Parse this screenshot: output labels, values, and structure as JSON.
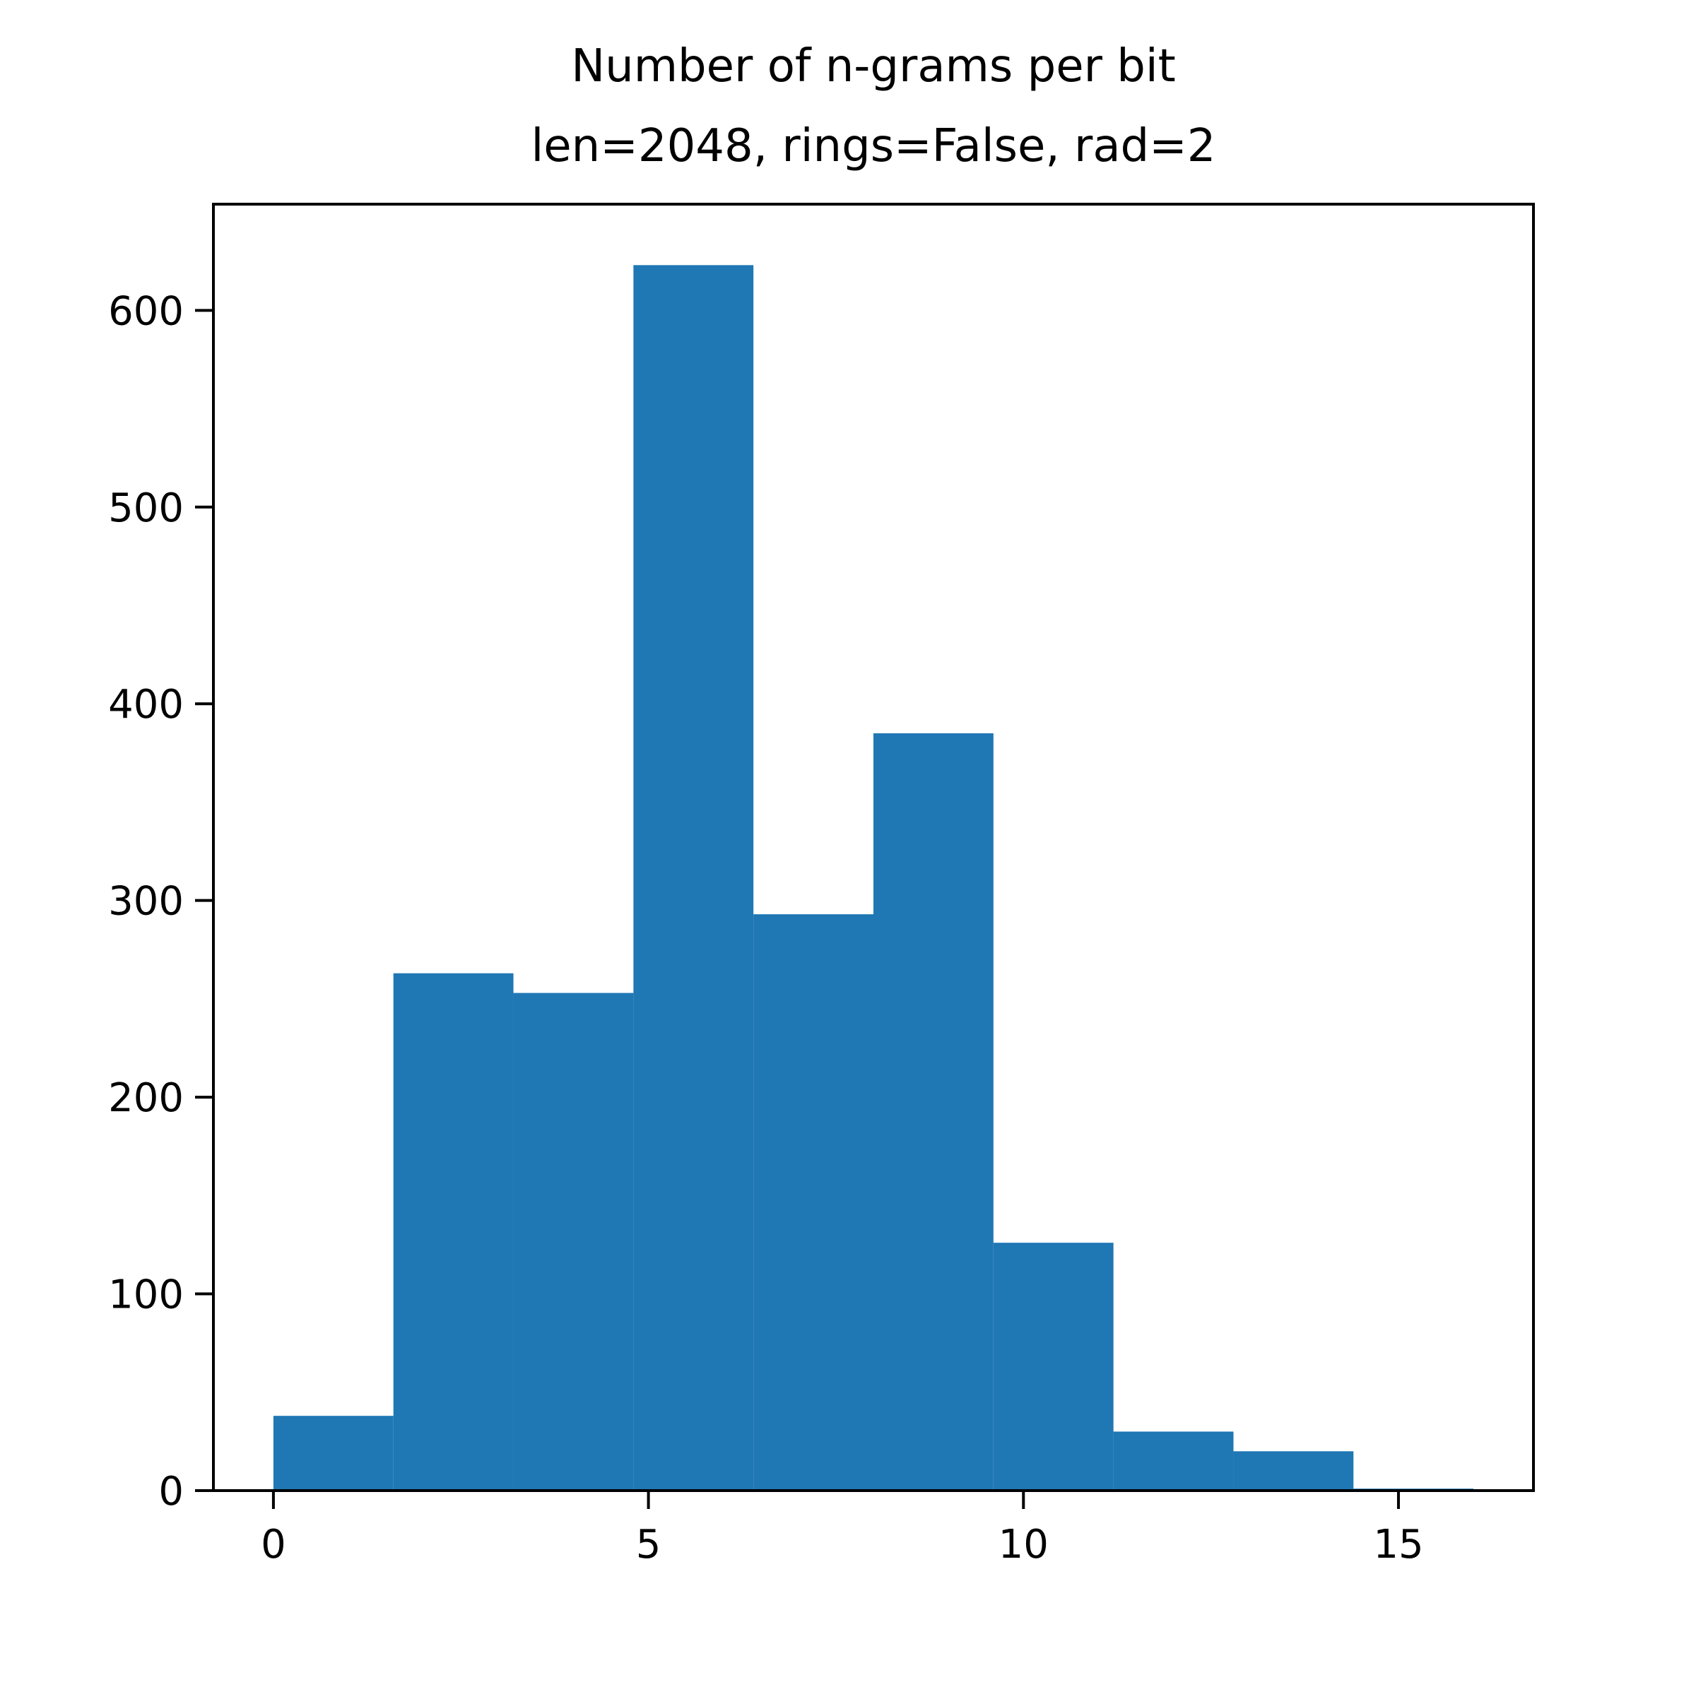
{
  "chart_data": {
    "type": "bar",
    "title_lines": [
      "Number of n-grams per bit",
      "len=2048, rings=False, rad=2"
    ],
    "xlabel": "",
    "ylabel": "",
    "bins": [
      {
        "x0": 0.0,
        "x1": 1.6,
        "count": 38
      },
      {
        "x0": 1.6,
        "x1": 3.2,
        "count": 263
      },
      {
        "x0": 3.2,
        "x1": 4.8,
        "count": 253
      },
      {
        "x0": 4.8,
        "x1": 6.4,
        "count": 623
      },
      {
        "x0": 6.4,
        "x1": 8.0,
        "count": 293
      },
      {
        "x0": 8.0,
        "x1": 9.6,
        "count": 385
      },
      {
        "x0": 9.6,
        "x1": 11.2,
        "count": 126
      },
      {
        "x0": 11.2,
        "x1": 12.8,
        "count": 30
      },
      {
        "x0": 12.8,
        "x1": 14.4,
        "count": 20
      },
      {
        "x0": 14.4,
        "x1": 16.0,
        "count": 1
      }
    ],
    "xlim": [
      -0.8,
      16.8
    ],
    "ylim": [
      0,
      654
    ],
    "xticks": [
      0,
      5,
      10,
      15
    ],
    "yticks": [
      0,
      100,
      200,
      300,
      400,
      500,
      600
    ],
    "grid": false,
    "bar_color": "#1f77b4"
  }
}
